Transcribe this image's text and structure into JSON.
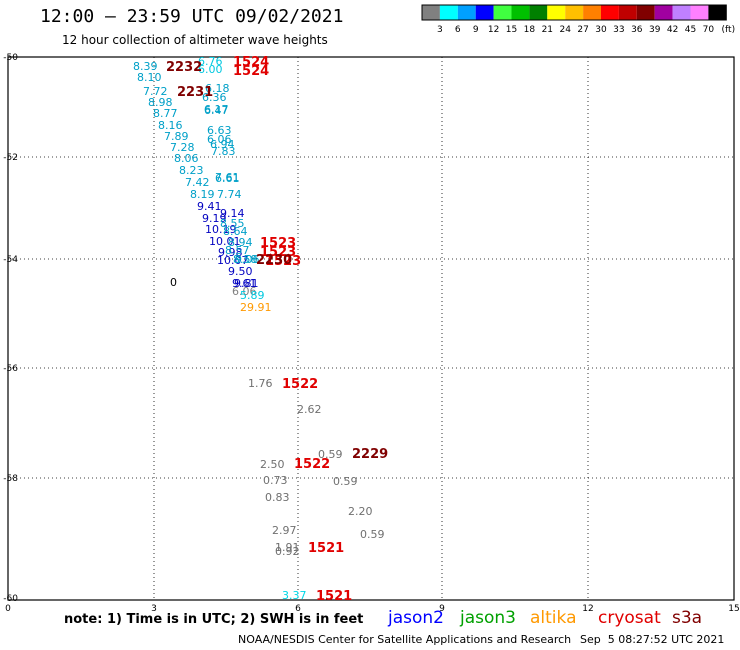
{
  "header": {
    "title": "12:00 — 23:59 UTC 09/02/2021",
    "subtitle": "12 hour collection of altimeter wave heights"
  },
  "colorbar": {
    "colors": [
      "#808080",
      "#00ffff",
      "#00a0ff",
      "#0000ff",
      "#40ff40",
      "#00c000",
      "#008000",
      "#ffff00",
      "#ffc000",
      "#ff8000",
      "#ff0000",
      "#c00000",
      "#800000",
      "#a000a0",
      "#c080ff",
      "#ff80ff",
      "#000000"
    ],
    "labels": [
      "3",
      "6",
      "9",
      "12",
      "15",
      "18",
      "21",
      "24",
      "27",
      "30",
      "33",
      "36",
      "39",
      "42",
      "45",
      "70"
    ],
    "unit": "(ft)"
  },
  "axes": {
    "y_labels": [
      "-50",
      "-52",
      "-54",
      "-56",
      "-58",
      "-60"
    ],
    "x_labels": [
      "0",
      "3",
      "6",
      "9",
      "12",
      "15"
    ]
  },
  "observations": [
    {
      "t": "8.39",
      "c": "#00a0c8"
    },
    {
      "t": "8.10",
      "c": "#00a0c8"
    },
    {
      "t": "7.72",
      "c": "#00a0c8"
    },
    {
      "t": "8.98",
      "c": "#00a0c8"
    },
    {
      "t": "8.77",
      "c": "#00a0c8"
    },
    {
      "t": "8.16",
      "c": "#00a0c8"
    },
    {
      "t": "7.89",
      "c": "#00a0c8"
    },
    {
      "t": "7.28",
      "c": "#00a0c8"
    },
    {
      "t": "8.06",
      "c": "#00a0c8"
    },
    {
      "t": "8.23",
      "c": "#00a0c8"
    },
    {
      "t": "7.42",
      "c": "#00a0c8"
    },
    {
      "t": "8.19",
      "c": "#00a0c8"
    },
    {
      "t": "9.41",
      "c": "#0000c0"
    },
    {
      "t": "9.19",
      "c": "#0000c0"
    },
    {
      "t": "10.19",
      "c": "#0000c0"
    },
    {
      "t": "10.01",
      "c": "#0000c0"
    },
    {
      "t": "9.98",
      "c": "#0000c0"
    },
    {
      "t": "10.07",
      "c": "#0000c0"
    },
    {
      "t": "9.50",
      "c": "#0000c0"
    },
    {
      "t": "9.61",
      "c": "#0000c0"
    },
    {
      "t": "6.76",
      "c": "#00c8e0"
    },
    {
      "t": "6.00",
      "c": "#00c8e0"
    },
    {
      "t": "6.18",
      "c": "#00a0c8"
    },
    {
      "t": "6.36",
      "c": "#00a0c8"
    },
    {
      "t": "6.17",
      "c": "#00a0c8"
    },
    {
      "t": "6.47",
      "c": "#00a0c8"
    },
    {
      "t": "6.63",
      "c": "#00a0c8"
    },
    {
      "t": "6.06",
      "c": "#00a0c8"
    },
    {
      "t": "6.94",
      "c": "#00a0c8"
    },
    {
      "t": "7.83",
      "c": "#00a0c8"
    },
    {
      "t": "7.61",
      "c": "#00a0c8"
    },
    {
      "t": "6.61",
      "c": "#00a0c8"
    },
    {
      "t": "7.74",
      "c": "#00a0c8"
    },
    {
      "t": "9.14",
      "c": "#0000c0"
    },
    {
      "t": "8.55",
      "c": "#00a0c8"
    },
    {
      "t": "8.64",
      "c": "#00a0c8"
    },
    {
      "t": "8.94",
      "c": "#00a0c8"
    },
    {
      "t": "8.57",
      "c": "#00a0c8"
    },
    {
      "t": "8.58",
      "c": "#00a0c8"
    },
    {
      "t": "9.06",
      "c": "#00a0c8"
    },
    {
      "t": "9.81",
      "c": "#0000c0"
    },
    {
      "t": "6.06",
      "c": "#808080"
    },
    {
      "t": "5.89",
      "c": "#00c8e0"
    },
    {
      "t": "29.91",
      "c": "#ff9900"
    },
    {
      "t": "0",
      "c": "#000000"
    },
    {
      "t": "1.76",
      "c": "#707070"
    },
    {
      "t": "2.62",
      "c": "#707070"
    },
    {
      "t": "0.59",
      "c": "#707070"
    },
    {
      "t": "2.50",
      "c": "#707070"
    },
    {
      "t": "0.73",
      "c": "#707070"
    },
    {
      "t": "0.59",
      "c": "#707070"
    },
    {
      "t": "0.83",
      "c": "#707070"
    },
    {
      "t": "2.20",
      "c": "#707070"
    },
    {
      "t": "0.59",
      "c": "#707070"
    },
    {
      "t": "2.97",
      "c": "#707070"
    },
    {
      "t": "1.91",
      "c": "#707070"
    },
    {
      "t": "0.92",
      "c": "#707070"
    },
    {
      "t": "3.37",
      "c": "#00d8e8"
    }
  ],
  "pass_labels": [
    {
      "t": "2232",
      "c": "#800000"
    },
    {
      "t": "1524",
      "c": "#e00000"
    },
    {
      "t": "1524",
      "c": "#e00000"
    },
    {
      "t": "2231",
      "c": "#800000"
    },
    {
      "t": "1523",
      "c": "#e00000"
    },
    {
      "t": "1523",
      "c": "#e00000"
    },
    {
      "t": "1523",
      "c": "#e00000"
    },
    {
      "t": "2230",
      "c": "#800000"
    },
    {
      "t": "1522",
      "c": "#e00000"
    },
    {
      "t": "2229",
      "c": "#800000"
    },
    {
      "t": "1522",
      "c": "#e00000"
    },
    {
      "t": "1521",
      "c": "#e00000"
    },
    {
      "t": "1521",
      "c": "#e00000"
    }
  ],
  "note": "note: 1) Time is in UTC; 2) SWH is in feet",
  "missions": [
    {
      "name": "jason2",
      "color": "#0000ff"
    },
    {
      "name": "jason3",
      "color": "#00a000"
    },
    {
      "name": "altika",
      "color": "#ff9900"
    },
    {
      "name": "cryosat",
      "color": "#e00000"
    },
    {
      "name": "s3a",
      "color": "#800000"
    }
  ],
  "footer": {
    "credit": "NOAA/NESDIS Center for Satellite Applications and Research",
    "timestamp": "Sep  5 08:27:52 UTC 2021"
  }
}
